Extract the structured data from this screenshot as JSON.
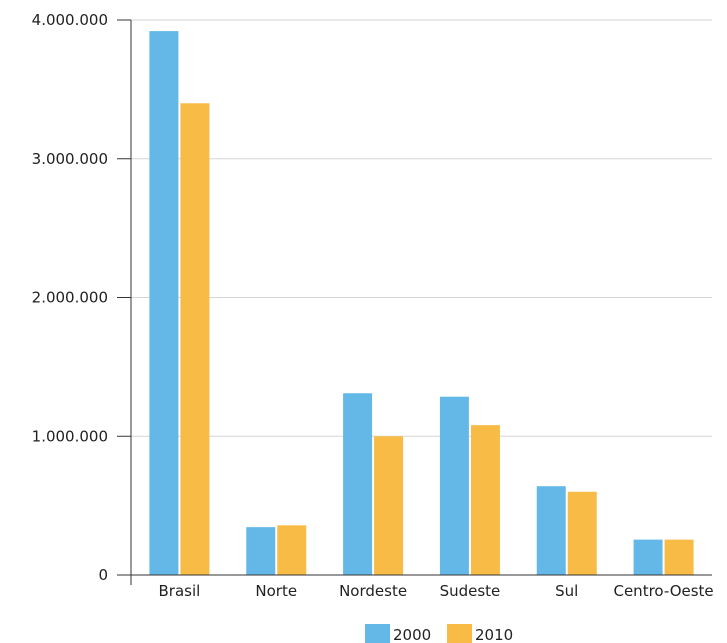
{
  "chart_data": {
    "type": "bar",
    "categories": [
      "Brasil",
      "Norte",
      "Nordeste",
      "Sudeste",
      "Sul",
      "Centro-Oeste"
    ],
    "series": [
      {
        "name": "2000",
        "values": [
          3920000,
          345000,
          1310000,
          1285000,
          640000,
          255000
        ],
        "color": "#63b8e8"
      },
      {
        "name": "2010",
        "values": [
          3400000,
          358000,
          1000000,
          1080000,
          600000,
          255000
        ],
        "color": "#f8bb45"
      }
    ],
    "yticks": [
      {
        "value": 0,
        "label": "0"
      },
      {
        "value": 1000000,
        "label": "1.000.000"
      },
      {
        "value": 2000000,
        "label": "2.000.000"
      },
      {
        "value": 3000000,
        "label": "3.000.000"
      },
      {
        "value": 4000000,
        "label": "4.000.000"
      }
    ],
    "ylim": [
      0,
      4000000
    ],
    "grid": true,
    "legend_position": "bottom-center"
  }
}
